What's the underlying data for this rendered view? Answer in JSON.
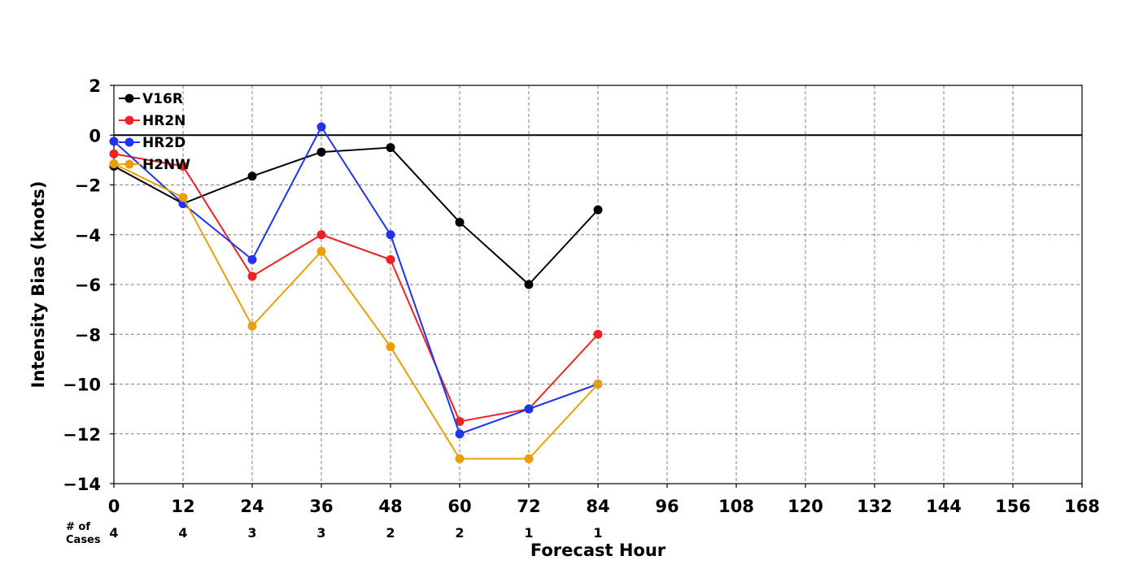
{
  "chart_data": {
    "type": "line",
    "xlabel": "Forecast Hour",
    "ylabel": "Intensity Bias (knots)",
    "xlim": [
      0,
      168
    ],
    "ylim": [
      -14,
      2
    ],
    "x_ticks": [
      0,
      12,
      24,
      36,
      48,
      60,
      72,
      84,
      96,
      108,
      120,
      132,
      144,
      156,
      168
    ],
    "y_ticks": [
      2,
      0,
      -2,
      -4,
      -6,
      -8,
      -10,
      -12,
      -14
    ],
    "y_tick_labels": [
      "2",
      "0",
      "−2",
      "−4",
      "−6",
      "−8",
      "−10",
      "−12",
      "−14"
    ],
    "grid": true,
    "zero_line": true,
    "legend_position": "top-left",
    "series": [
      {
        "name": "V16R",
        "color": "#000000",
        "x": [
          0,
          12,
          24,
          36,
          48,
          60,
          72,
          84
        ],
        "y": [
          -1.25,
          -2.75,
          -1.65,
          -0.68,
          -0.5,
          -3.5,
          -6.0,
          -3.0
        ]
      },
      {
        "name": "HR2N",
        "color": "#ee2222",
        "x": [
          0,
          12,
          24,
          36,
          48,
          60,
          72,
          84
        ],
        "y": [
          -0.75,
          -1.25,
          -5.67,
          -4.0,
          -5.0,
          -11.5,
          -11.0,
          -8.0
        ]
      },
      {
        "name": "HR2D",
        "color": "#2233ee",
        "x": [
          0,
          12,
          24,
          36,
          48,
          60,
          72,
          84
        ],
        "y": [
          -0.25,
          -2.75,
          -5.0,
          0.33,
          -4.0,
          -12.0,
          -11.0,
          -10.0
        ]
      },
      {
        "name": "H2NW",
        "color": "#e8a00a",
        "x": [
          0,
          12,
          24,
          36,
          48,
          60,
          72,
          84
        ],
        "y": [
          -1.15,
          -2.5,
          -7.67,
          -4.67,
          -8.5,
          -13.0,
          -13.0,
          -10.0
        ]
      }
    ],
    "cases": {
      "label_line1": "# of",
      "label_line2": "Cases",
      "x": [
        0,
        12,
        24,
        36,
        48,
        60,
        72,
        84
      ],
      "counts": [
        "4",
        "4",
        "3",
        "3",
        "2",
        "2",
        "1",
        "1"
      ]
    }
  }
}
